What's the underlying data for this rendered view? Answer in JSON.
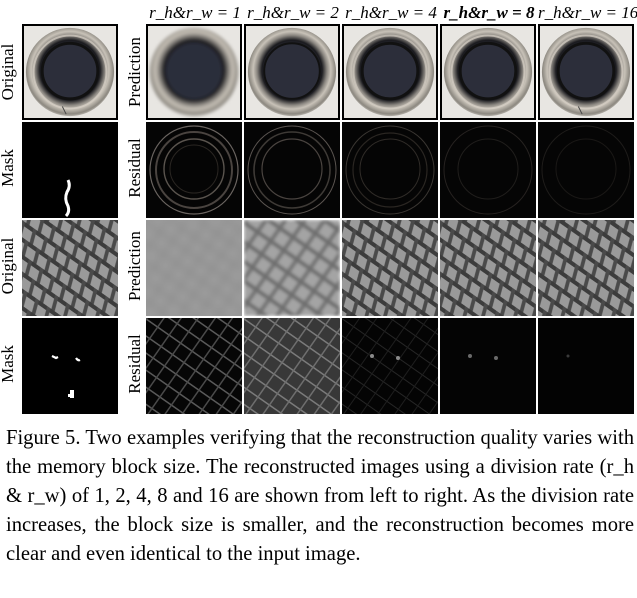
{
  "column_headers": [
    "r_h&r_w = 1",
    "r_h&r_w = 2",
    "r_h&r_w = 4",
    "r_h&r_w = 8",
    "r_h&r_w = 16"
  ],
  "left_labels": [
    "Original",
    "Mask",
    "Original",
    "Mask"
  ],
  "row_labels": [
    "Prediction",
    "Residual",
    "Prediction",
    "Residual"
  ],
  "caption": "Figure 5. Two examples verifying that the reconstruction quality varies with the memory block size.  The reconstructed images using a division rate (r_h & r_w) of 1, 2, 4, 8 and 16 are shown from left to right.  As the division rate increases, the block size is smaller, and the reconstruction becomes more clear and even identical to the input image.",
  "colors": {
    "background": "#ffffff",
    "residual_bg": "#050505",
    "mesh_base": "#8e8e8e"
  }
}
